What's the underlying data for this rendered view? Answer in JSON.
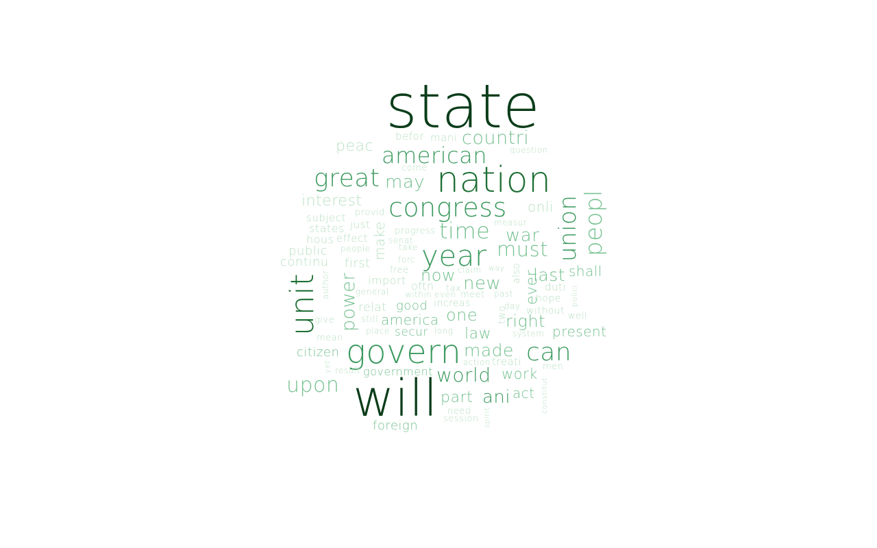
{
  "colors": {
    "background": "#ffffff",
    "darkest": "#0b3d1a",
    "dark": "#1e6f35",
    "mid": "#3c9a5f",
    "light": "#74c08f",
    "pale": "#b9e0c4"
  },
  "words": [
    {
      "text": "state",
      "weight": 1.0
    },
    {
      "text": "will",
      "weight": 0.95
    },
    {
      "text": "nation",
      "weight": 0.75
    },
    {
      "text": "govern",
      "weight": 0.7
    },
    {
      "text": "unit",
      "weight": 0.6
    },
    {
      "text": "year",
      "weight": 0.55
    },
    {
      "text": "congress",
      "weight": 0.52
    },
    {
      "text": "american",
      "weight": 0.45
    },
    {
      "text": "great",
      "weight": 0.45
    },
    {
      "text": "can",
      "weight": 0.44
    },
    {
      "text": "union",
      "weight": 0.43
    },
    {
      "text": "peopl",
      "weight": 0.42
    },
    {
      "text": "time",
      "weight": 0.42
    },
    {
      "text": "countri",
      "weight": 0.38
    },
    {
      "text": "must",
      "weight": 0.38
    },
    {
      "text": "world",
      "weight": 0.37
    },
    {
      "text": "upon",
      "weight": 0.36
    },
    {
      "text": "may",
      "weight": 0.34
    },
    {
      "text": "war",
      "weight": 0.33
    },
    {
      "text": "power",
      "weight": 0.33
    },
    {
      "text": "made",
      "weight": 0.32
    },
    {
      "text": "new",
      "weight": 0.32
    },
    {
      "text": "ani",
      "weight": 0.31
    },
    {
      "text": "last",
      "weight": 0.3
    },
    {
      "text": "now",
      "weight": 0.3
    },
    {
      "text": "one",
      "weight": 0.29
    },
    {
      "text": "right",
      "weight": 0.29
    },
    {
      "text": "interest",
      "weight": 0.28
    },
    {
      "text": "peac",
      "weight": 0.28
    },
    {
      "text": "part",
      "weight": 0.28
    },
    {
      "text": "work",
      "weight": 0.27
    },
    {
      "text": "law",
      "weight": 0.27
    },
    {
      "text": "present",
      "weight": 0.27
    },
    {
      "text": "ever",
      "weight": 0.27
    },
    {
      "text": "shall",
      "weight": 0.26
    },
    {
      "text": "onli",
      "weight": 0.26
    },
    {
      "text": "make",
      "weight": 0.26
    },
    {
      "text": "america",
      "weight": 0.25
    },
    {
      "text": "citizen",
      "weight": 0.24
    },
    {
      "text": "public",
      "weight": 0.24
    },
    {
      "text": "continu",
      "weight": 0.24
    },
    {
      "text": "act",
      "weight": 0.24
    },
    {
      "text": "first",
      "weight": 0.23
    },
    {
      "text": "good",
      "weight": 0.23
    },
    {
      "text": "government",
      "weight": 0.23
    },
    {
      "text": "secur",
      "weight": 0.23
    },
    {
      "text": "foreign",
      "weight": 0.22
    },
    {
      "text": "relat",
      "weight": 0.22
    },
    {
      "text": "import",
      "weight": 0.22
    },
    {
      "text": "oftn",
      "weight": 0.22
    },
    {
      "text": "states",
      "weight": 0.21
    },
    {
      "text": "subject",
      "weight": 0.2
    },
    {
      "text": "hous",
      "weight": 0.21
    },
    {
      "text": "effect",
      "weight": 0.2
    },
    {
      "text": "just",
      "weight": 0.2
    },
    {
      "text": "increas",
      "weight": 0.2
    },
    {
      "text": "treati",
      "weight": 0.2
    },
    {
      "text": "befor",
      "weight": 0.19
    },
    {
      "text": "mani",
      "weight": 0.19
    },
    {
      "text": "duti",
      "weight": 0.19
    },
    {
      "text": "hope",
      "weight": 0.19
    },
    {
      "text": "without",
      "weight": 0.19
    },
    {
      "text": "also",
      "weight": 0.18
    },
    {
      "text": "two",
      "weight": 0.18
    },
    {
      "text": "well",
      "weight": 0.17
    },
    {
      "text": "come",
      "weight": 0.16
    },
    {
      "text": "provid",
      "weight": 0.15
    },
    {
      "text": "progress",
      "weight": 0.15
    },
    {
      "text": "senat",
      "weight": 0.15
    },
    {
      "text": "take",
      "weight": 0.14
    },
    {
      "text": "people",
      "weight": 0.14
    },
    {
      "text": "forc",
      "weight": 0.15
    },
    {
      "text": "free",
      "weight": 0.15
    },
    {
      "text": "claim",
      "weight": 0.13
    },
    {
      "text": "way",
      "weight": 0.13
    },
    {
      "text": "general",
      "weight": 0.14
    },
    {
      "text": "tax",
      "weight": 0.15
    },
    {
      "text": "within",
      "weight": 0.14
    },
    {
      "text": "even",
      "weight": 0.14
    },
    {
      "text": "meet",
      "weight": 0.14
    },
    {
      "text": "past",
      "weight": 0.14
    },
    {
      "text": "day",
      "weight": 0.13
    },
    {
      "text": "polici",
      "weight": 0.12
    },
    {
      "text": "author",
      "weight": 0.13
    },
    {
      "text": "give",
      "weight": 0.14
    },
    {
      "text": "still",
      "weight": 0.14
    },
    {
      "text": "mean",
      "weight": 0.14
    },
    {
      "text": "place",
      "weight": 0.13
    },
    {
      "text": "long",
      "weight": 0.13
    },
    {
      "text": "system",
      "weight": 0.13
    },
    {
      "text": "action",
      "weight": 0.13
    },
    {
      "text": "men",
      "weight": 0.13
    },
    {
      "text": "yet",
      "weight": 0.12
    },
    {
      "text": "result",
      "weight": 0.13
    },
    {
      "text": "constitut",
      "weight": 0.12
    },
    {
      "text": "need",
      "weight": 0.14
    },
    {
      "text": "session",
      "weight": 0.14
    },
    {
      "text": "spirit",
      "weight": 0.12
    },
    {
      "text": "question",
      "weight": 0.13
    },
    {
      "text": "measur",
      "weight": 0.13
    }
  ]
}
